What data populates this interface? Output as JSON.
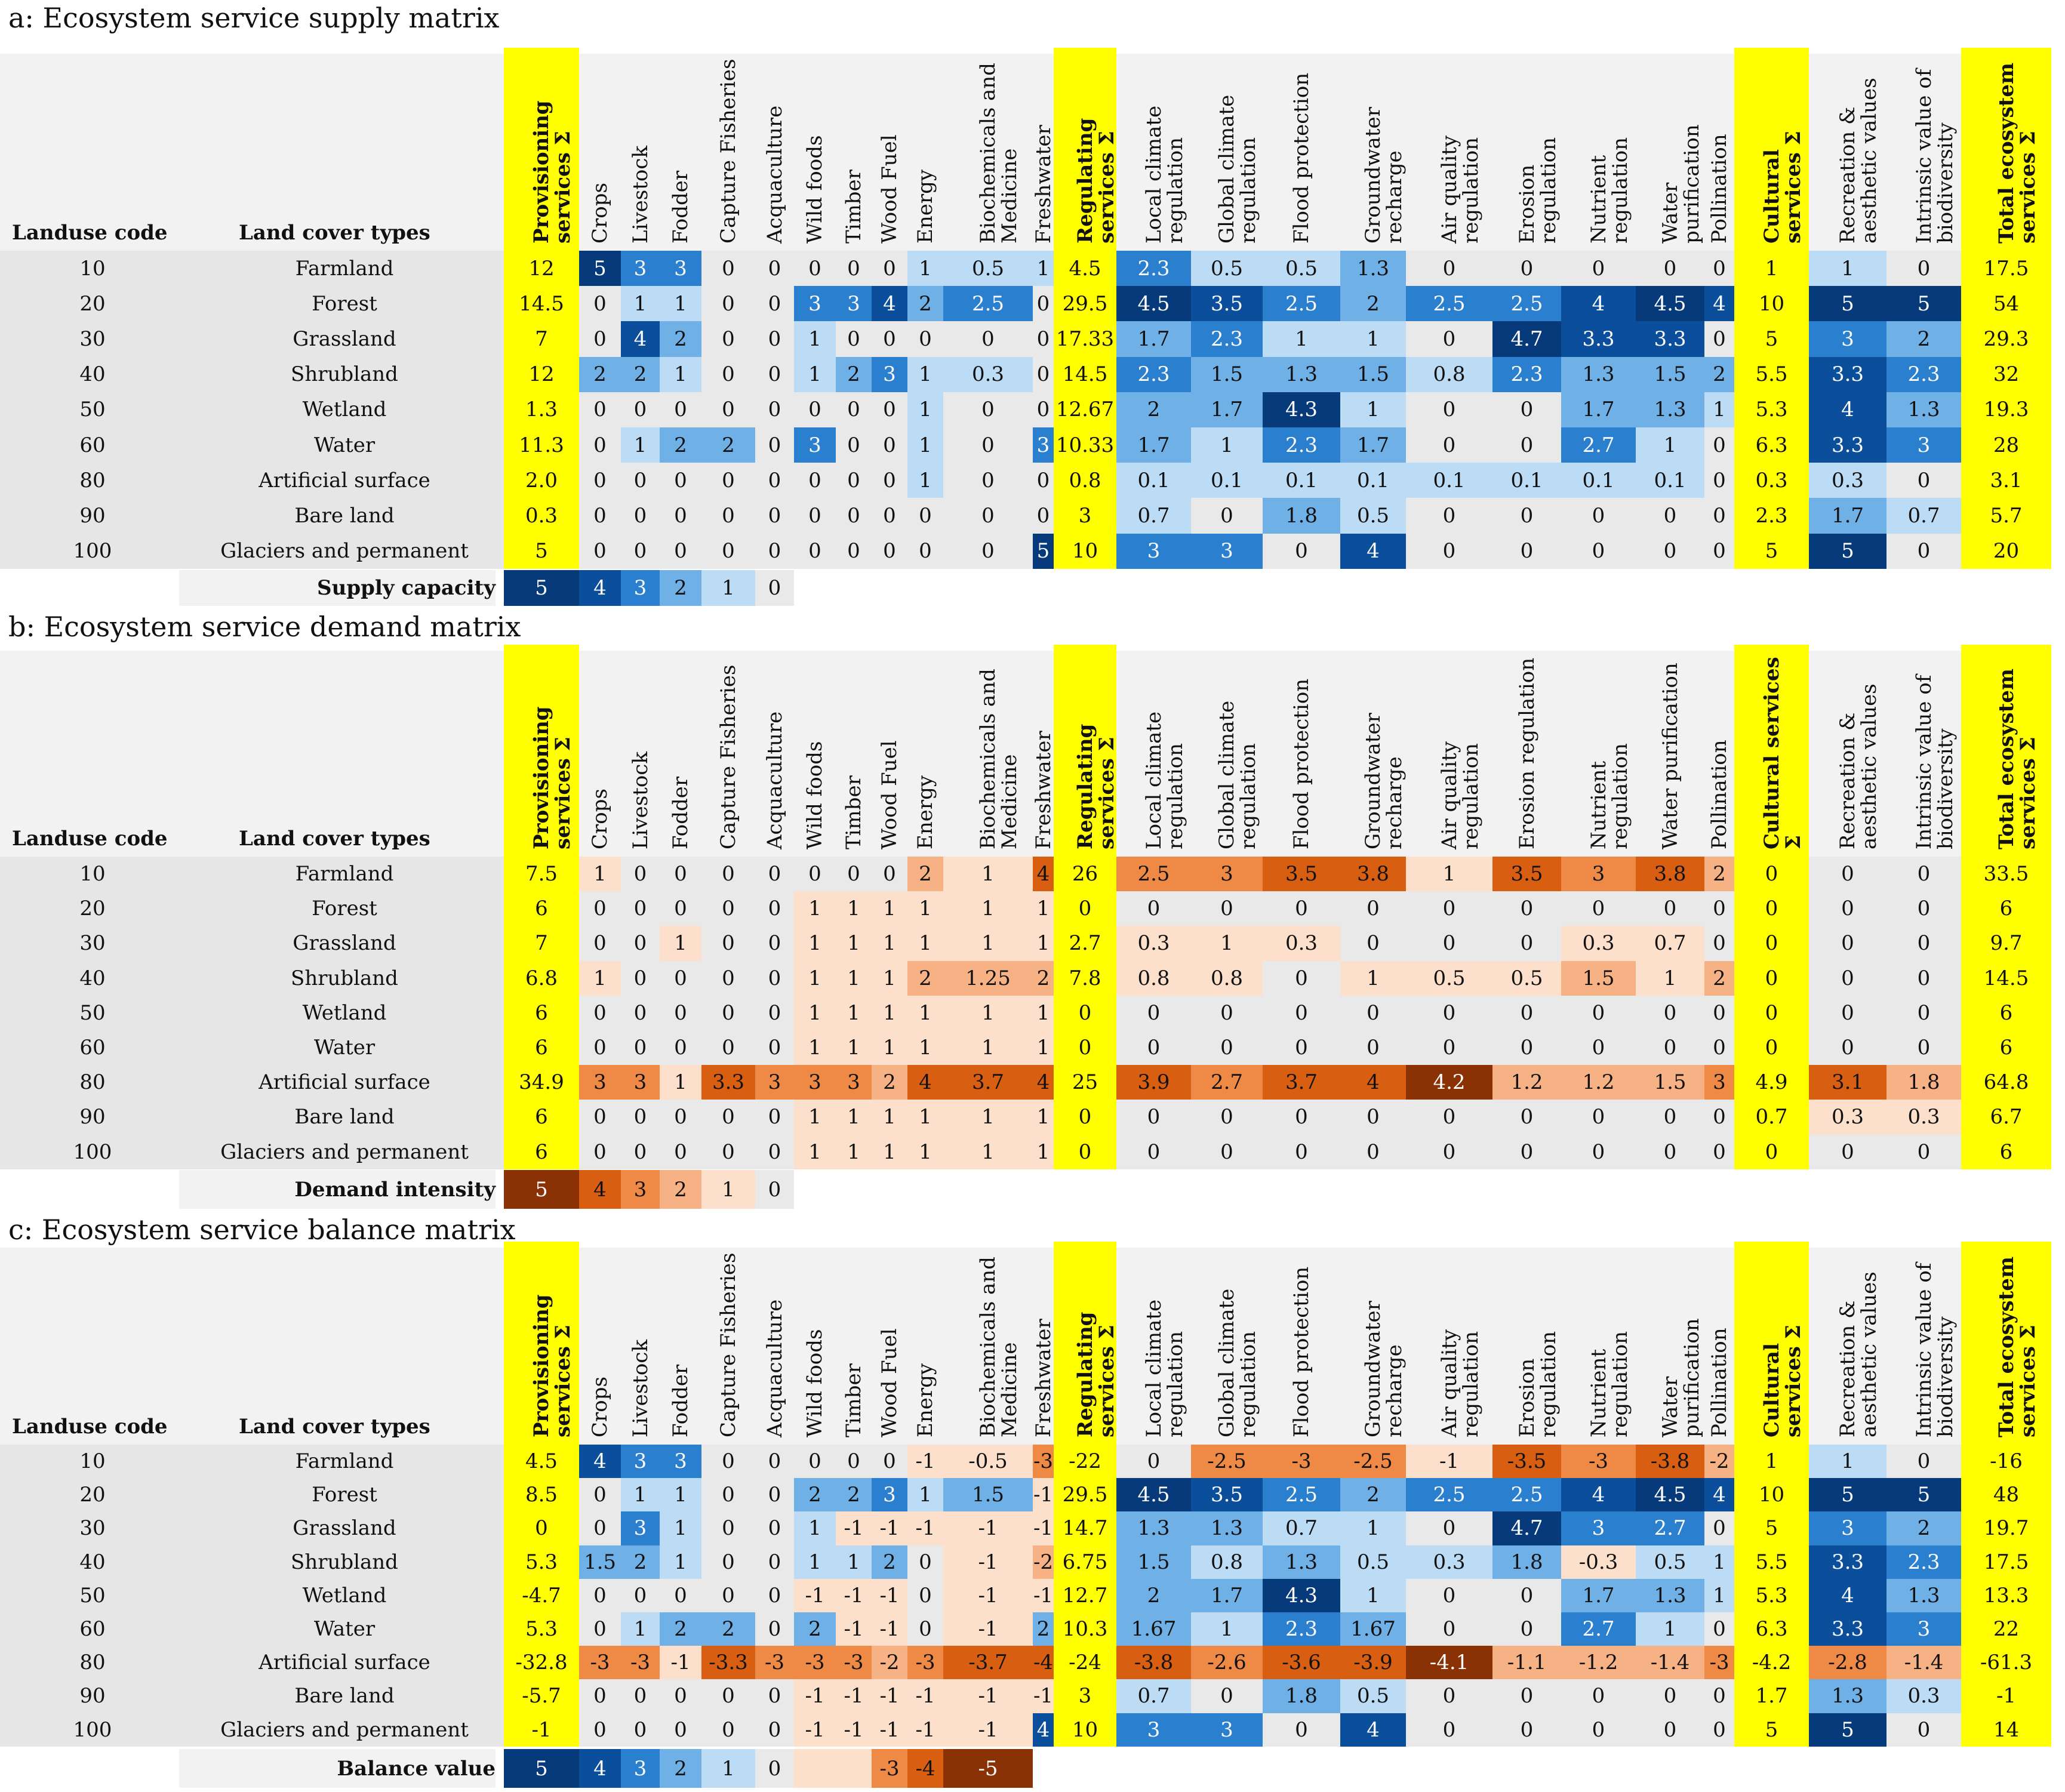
{
  "colors": {
    "yellow": "#ffff00",
    "header_bg": "#f2f2f2",
    "cell_bg": "#e9e9e9",
    "blue_scale": [
      "#bcdcf5",
      "#6fb0e6",
      "#2a7fcf",
      "#0b4f9c",
      "#063a7a"
    ],
    "orange_scale": [
      "#fde0cc",
      "#f6b184",
      "#ee8a45",
      "#d85e12",
      "#8a3206"
    ]
  },
  "columns": [
    {
      "key": "prov",
      "label": "Provisioning services Σ",
      "sum": true
    },
    {
      "key": "crops",
      "label": "Crops"
    },
    {
      "key": "livestock",
      "label": "Livestock"
    },
    {
      "key": "fodder",
      "label": "Fodder"
    },
    {
      "key": "capture",
      "label": "Capture Fisheries"
    },
    {
      "key": "aqua",
      "label": "Acquaculture"
    },
    {
      "key": "wild",
      "label": "Wild foods"
    },
    {
      "key": "timber",
      "label": "Timber"
    },
    {
      "key": "woodfuel",
      "label": "Wood Fuel"
    },
    {
      "key": "energy",
      "label": "Energy"
    },
    {
      "key": "biochem",
      "label": "Biochemicals and Medicine"
    },
    {
      "key": "freshwater",
      "label": "Freshwater"
    },
    {
      "key": "reg",
      "label": "Regulating services Σ",
      "sum": true
    },
    {
      "key": "localclim",
      "label": "Local climate regulation"
    },
    {
      "key": "globalclim",
      "label": "Global climate regulation"
    },
    {
      "key": "flood",
      "label": "Flood protection"
    },
    {
      "key": "groundwater",
      "label": "Groundwater recharge"
    },
    {
      "key": "airq",
      "label": "Air quality regulation"
    },
    {
      "key": "erosion",
      "label": "Erosion regulation"
    },
    {
      "key": "nutrient",
      "label": "Nutrient regulation"
    },
    {
      "key": "water",
      "label": "Water purification"
    },
    {
      "key": "pollination",
      "label": "Pollination"
    },
    {
      "key": "cult",
      "label": "Cultural services Σ",
      "sum": true
    },
    {
      "key": "recreation",
      "label": "Recreation & aesthetic values"
    },
    {
      "key": "intrinsic",
      "label": "Intrinsic value of biodiversity"
    },
    {
      "key": "total",
      "label": "Total ecosystem services Σ",
      "sum": true
    }
  ],
  "header": {
    "landuse_code": "Landuse code",
    "land_cover_types": "Land cover types"
  },
  "chart_data": [
    {
      "type": "table",
      "title": "a: Ecosystem service supply matrix",
      "scale": "blue",
      "rows": [
        {
          "code": "10",
          "name": "Farmland",
          "values": [
            "12",
            "5",
            "3",
            "3",
            "0",
            "0",
            "0",
            "0",
            "0",
            "1",
            "0.5",
            "1",
            "4.5",
            "2.3",
            "0.5",
            "0.5",
            "1.3",
            "0",
            "0",
            "0",
            "0",
            "0",
            "1",
            "1",
            "0",
            "17.5"
          ]
        },
        {
          "code": "20",
          "name": "Forest",
          "values": [
            "14.5",
            "0",
            "1",
            "1",
            "0",
            "0",
            "3",
            "3",
            "4",
            "2",
            "2.5",
            "0",
            "29.5",
            "4.5",
            "3.5",
            "2.5",
            "2",
            "2.5",
            "2.5",
            "4",
            "4.5",
            "4",
            "10",
            "5",
            "5",
            "54"
          ]
        },
        {
          "code": "30",
          "name": "Grassland",
          "values": [
            "7",
            "0",
            "4",
            "2",
            "0",
            "0",
            "1",
            "0",
            "0",
            "0",
            "0",
            "0",
            "17.33",
            "1.7",
            "2.3",
            "1",
            "1",
            "0",
            "4.7",
            "3.3",
            "3.3",
            "0",
            "5",
            "3",
            "2",
            "29.3"
          ]
        },
        {
          "code": "40",
          "name": "Shrubland",
          "values": [
            "12",
            "2",
            "2",
            "1",
            "0",
            "0",
            "1",
            "2",
            "3",
            "1",
            "0.3",
            "0",
            "14.5",
            "2.3",
            "1.5",
            "1.3",
            "1.5",
            "0.8",
            "2.3",
            "1.3",
            "1.5",
            "2",
            "5.5",
            "3.3",
            "2.3",
            "32"
          ]
        },
        {
          "code": "50",
          "name": "Wetland",
          "values": [
            "1.3",
            "0",
            "0",
            "0",
            "0",
            "0",
            "0",
            "0",
            "0",
            "1",
            "0",
            "0",
            "12.67",
            "2",
            "1.7",
            "4.3",
            "1",
            "0",
            "0",
            "1.7",
            "1.3",
            "1",
            "5.3",
            "4",
            "1.3",
            "19.3"
          ]
        },
        {
          "code": "60",
          "name": "Water",
          "values": [
            "11.3",
            "0",
            "1",
            "2",
            "2",
            "0",
            "3",
            "0",
            "0",
            "1",
            "0",
            "3",
            "10.33",
            "1.7",
            "1",
            "2.3",
            "1.7",
            "0",
            "0",
            "2.7",
            "1",
            "0",
            "6.3",
            "3.3",
            "3",
            "28"
          ]
        },
        {
          "code": "80",
          "name": "Artificial surface",
          "values": [
            "2.0",
            "0",
            "0",
            "0",
            "0",
            "0",
            "0",
            "0",
            "0",
            "1",
            "0",
            "0",
            "0.8",
            "0.1",
            "0.1",
            "0.1",
            "0.1",
            "0.1",
            "0.1",
            "0.1",
            "0.1",
            "0",
            "0.3",
            "0.3",
            "0",
            "3.1"
          ]
        },
        {
          "code": "90",
          "name": "Bare land",
          "values": [
            "0.3",
            "0",
            "0",
            "0",
            "0",
            "0",
            "0",
            "0",
            "0",
            "0",
            "0",
            "0",
            "3",
            "0.7",
            "0",
            "1.8",
            "0.5",
            "0",
            "0",
            "0",
            "0",
            "0",
            "2.3",
            "1.7",
            "0.7",
            "5.7"
          ]
        },
        {
          "code": "100",
          "name": "Glaciers and permanent",
          "values": [
            "5",
            "0",
            "0",
            "0",
            "0",
            "0",
            "0",
            "0",
            "0",
            "0",
            "0",
            "5",
            "10",
            "3",
            "3",
            "0",
            "4",
            "0",
            "0",
            "0",
            "0",
            "0",
            "5",
            "5",
            "0",
            "20"
          ]
        }
      ],
      "legend": {
        "label": "Supply capacity",
        "values": [
          "5",
          "4",
          "3",
          "2",
          "1",
          "0"
        ]
      }
    },
    {
      "type": "table",
      "title": "b: Ecosystem service demand matrix",
      "scale": "orange",
      "rows": [
        {
          "code": "10",
          "name": "Farmland",
          "values": [
            "7.5",
            "1",
            "0",
            "0",
            "0",
            "0",
            "0",
            "0",
            "0",
            "2",
            "1",
            "4",
            "26",
            "2.5",
            "3",
            "3.5",
            "3.8",
            "1",
            "3.5",
            "3",
            "3.8",
            "2",
            "0",
            "0",
            "0",
            "33.5"
          ]
        },
        {
          "code": "20",
          "name": "Forest",
          "values": [
            "6",
            "0",
            "0",
            "0",
            "0",
            "0",
            "1",
            "1",
            "1",
            "1",
            "1",
            "1",
            "0",
            "0",
            "0",
            "0",
            "0",
            "0",
            "0",
            "0",
            "0",
            "0",
            "0",
            "0",
            "0",
            "6"
          ]
        },
        {
          "code": "30",
          "name": "Grassland",
          "values": [
            "7",
            "0",
            "0",
            "1",
            "0",
            "0",
            "1",
            "1",
            "1",
            "1",
            "1",
            "1",
            "2.7",
            "0.3",
            "1",
            "0.3",
            "0",
            "0",
            "0",
            "0.3",
            "0.7",
            "0",
            "0",
            "0",
            "0",
            "9.7"
          ]
        },
        {
          "code": "40",
          "name": "Shrubland",
          "values": [
            "6.8",
            "1",
            "0",
            "0",
            "0",
            "0",
            "1",
            "1",
            "1",
            "2",
            "1.25",
            "2",
            "7.8",
            "0.8",
            "0.8",
            "0",
            "1",
            "0.5",
            "0.5",
            "1.5",
            "1",
            "2",
            "0",
            "0",
            "0",
            "14.5"
          ]
        },
        {
          "code": "50",
          "name": "Wetland",
          "values": [
            "6",
            "0",
            "0",
            "0",
            "0",
            "0",
            "1",
            "1",
            "1",
            "1",
            "1",
            "1",
            "0",
            "0",
            "0",
            "0",
            "0",
            "0",
            "0",
            "0",
            "0",
            "0",
            "0",
            "0",
            "0",
            "6"
          ]
        },
        {
          "code": "60",
          "name": "Water",
          "values": [
            "6",
            "0",
            "0",
            "0",
            "0",
            "0",
            "1",
            "1",
            "1",
            "1",
            "1",
            "1",
            "0",
            "0",
            "0",
            "0",
            "0",
            "0",
            "0",
            "0",
            "0",
            "0",
            "0",
            "0",
            "0",
            "6"
          ]
        },
        {
          "code": "80",
          "name": "Artificial surface",
          "values": [
            "34.9",
            "3",
            "3",
            "1",
            "3.3",
            "3",
            "3",
            "3",
            "2",
            "4",
            "3.7",
            "4",
            "25",
            "3.9",
            "2.7",
            "3.7",
            "4",
            "4.2",
            "1.2",
            "1.2",
            "1.5",
            "3",
            "4.9",
            "3.1",
            "1.8",
            "64.8"
          ]
        },
        {
          "code": "90",
          "name": "Bare land",
          "values": [
            "6",
            "0",
            "0",
            "0",
            "0",
            "0",
            "1",
            "1",
            "1",
            "1",
            "1",
            "1",
            "0",
            "0",
            "0",
            "0",
            "0",
            "0",
            "0",
            "0",
            "0",
            "0",
            "0.7",
            "0.3",
            "0.3",
            "6.7"
          ]
        },
        {
          "code": "100",
          "name": "Glaciers and permanent",
          "values": [
            "6",
            "0",
            "0",
            "0",
            "0",
            "0",
            "1",
            "1",
            "1",
            "1",
            "1",
            "1",
            "0",
            "0",
            "0",
            "0",
            "0",
            "0",
            "0",
            "0",
            "0",
            "0",
            "0",
            "0",
            "0",
            "6"
          ]
        }
      ],
      "legend": {
        "label": "Demand intensity",
        "values": [
          "5",
          "4",
          "3",
          "2",
          "1",
          "0"
        ]
      }
    },
    {
      "type": "table",
      "title": "c: Ecosystem service balance matrix",
      "scale": "diverging",
      "rows": [
        {
          "code": "10",
          "name": "Farmland",
          "values": [
            "4.5",
            "4",
            "3",
            "3",
            "0",
            "0",
            "0",
            "0",
            "0",
            "-1",
            "-0.5",
            "-3",
            "-22",
            "0",
            "-2.5",
            "-3",
            "-2.5",
            "-1",
            "-3.5",
            "-3",
            "-3.8",
            "-2",
            "1",
            "1",
            "0",
            "-16"
          ]
        },
        {
          "code": "20",
          "name": "Forest",
          "values": [
            "8.5",
            "0",
            "1",
            "1",
            "0",
            "0",
            "2",
            "2",
            "3",
            "1",
            "1.5",
            "-1",
            "29.5",
            "4.5",
            "3.5",
            "2.5",
            "2",
            "2.5",
            "2.5",
            "4",
            "4.5",
            "4",
            "10",
            "5",
            "5",
            "48"
          ]
        },
        {
          "code": "30",
          "name": "Grassland",
          "values": [
            "0",
            "0",
            "3",
            "1",
            "0",
            "0",
            "1",
            "-1",
            "-1",
            "-1",
            "-1",
            "-1",
            "14.7",
            "1.3",
            "1.3",
            "0.7",
            "1",
            "0",
            "4.7",
            "3",
            "2.7",
            "0",
            "5",
            "3",
            "2",
            "19.7"
          ]
        },
        {
          "code": "40",
          "name": "Shrubland",
          "values": [
            "5.3",
            "1.5",
            "2",
            "1",
            "0",
            "0",
            "1",
            "1",
            "2",
            "0",
            "-1",
            "-2",
            "6.75",
            "1.5",
            "0.8",
            "1.3",
            "0.5",
            "0.3",
            "1.8",
            "-0.3",
            "0.5",
            "1",
            "5.5",
            "3.3",
            "2.3",
            "17.5"
          ]
        },
        {
          "code": "50",
          "name": "Wetland",
          "values": [
            "-4.7",
            "0",
            "0",
            "0",
            "0",
            "0",
            "-1",
            "-1",
            "-1",
            "0",
            "-1",
            "-1",
            "12.7",
            "2",
            "1.7",
            "4.3",
            "1",
            "0",
            "0",
            "1.7",
            "1.3",
            "1",
            "5.3",
            "4",
            "1.3",
            "13.3"
          ]
        },
        {
          "code": "60",
          "name": "Water",
          "values": [
            "5.3",
            "0",
            "1",
            "2",
            "2",
            "0",
            "2",
            "-1",
            "-1",
            "0",
            "-1",
            "2",
            "10.3",
            "1.67",
            "1",
            "2.3",
            "1.67",
            "0",
            "0",
            "2.7",
            "1",
            "0",
            "6.3",
            "3.3",
            "3",
            "22"
          ]
        },
        {
          "code": "80",
          "name": "Artificial surface",
          "values": [
            "-32.8",
            "-3",
            "-3",
            "-1",
            "-3.3",
            "-3",
            "-3",
            "-3",
            "-2",
            "-3",
            "-3.7",
            "-4",
            "-24",
            "-3.8",
            "-2.6",
            "-3.6",
            "-3.9",
            "-4.1",
            "-1.1",
            "-1.2",
            "-1.4",
            "-3",
            "-4.2",
            "-2.8",
            "-1.4",
            "-61.3"
          ]
        },
        {
          "code": "90",
          "name": "Bare land",
          "values": [
            "-5.7",
            "0",
            "0",
            "0",
            "0",
            "0",
            "-1",
            "-1",
            "-1",
            "-1",
            "-1",
            "-1",
            "3",
            "0.7",
            "0",
            "1.8",
            "0.5",
            "0",
            "0",
            "0",
            "0",
            "0",
            "1.7",
            "1.3",
            "0.3",
            "-1"
          ]
        },
        {
          "code": "100",
          "name": "Glaciers and permanent",
          "values": [
            "-1",
            "0",
            "0",
            "0",
            "0",
            "0",
            "-1",
            "-1",
            "-1",
            "-1",
            "-1",
            "4",
            "10",
            "3",
            "3",
            "0",
            "4",
            "0",
            "0",
            "0",
            "0",
            "0",
            "5",
            "5",
            "0",
            "14"
          ]
        }
      ],
      "balance_text": {
        "4": {
          "5": "0",
          "6": "0",
          "7": "",
          "8": "-1"
        },
        "5": {
          "6": "2",
          "7": "",
          "8": "-1"
        },
        "2": {
          "7": "",
          "8": "-1"
        },
        "8": {
          "6": "",
          "7": "",
          "8": "-1"
        },
        "9": {
          "6": "",
          "7": "",
          "8": "-1"
        },
        "7": {
          "6": "",
          "7": ""
        }
      },
      "legend": {
        "label": "Balance value",
        "values": [
          "5",
          "4",
          "3",
          "2",
          "1",
          "0",
          "",
          "",
          "-3",
          "-4",
          "-5"
        ]
      }
    }
  ]
}
